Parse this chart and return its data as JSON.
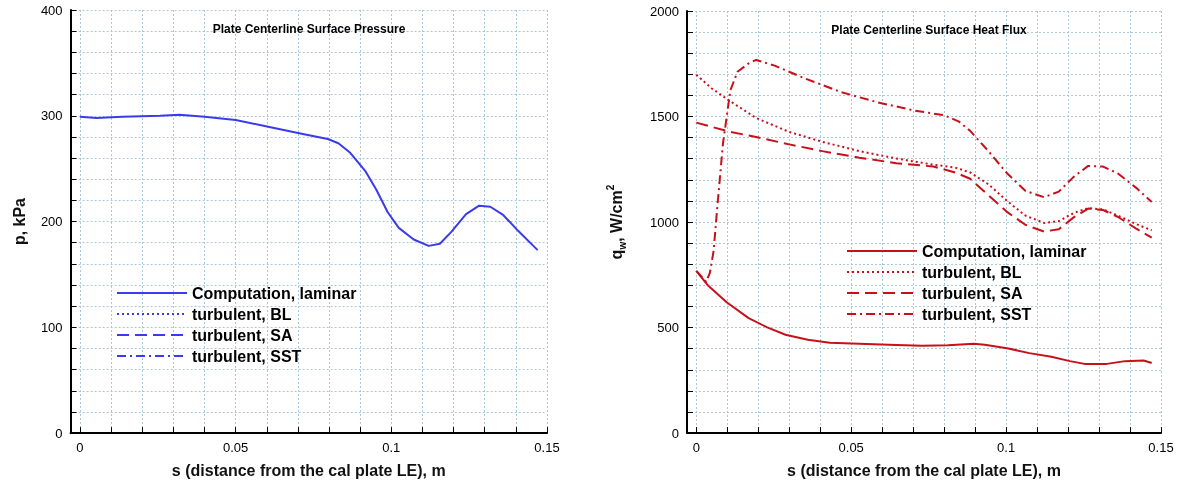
{
  "chart_data": [
    {
      "type": "line",
      "title": "Plate Centerline Surface Pressure",
      "xlabel": "s (distance from the cal plate LE), m",
      "ylabel": "p, kPa",
      "xlim": [
        -0.003,
        0.15
      ],
      "xticks": [
        0,
        {
          "value": 0.01,
          "label": null
        },
        {
          "value": 0.02,
          "label": null
        },
        {
          "value": 0.03,
          "label": null
        },
        {
          "value": 0.04,
          "label": null
        },
        0.05,
        {
          "value": 0.06,
          "label": null
        },
        {
          "value": 0.07,
          "label": null
        },
        {
          "value": 0.08,
          "label": null
        },
        {
          "value": 0.09,
          "label": null
        },
        0.1,
        {
          "value": 0.11,
          "label": null
        },
        {
          "value": 0.12,
          "label": null
        },
        {
          "value": 0.13,
          "label": null
        },
        {
          "value": 0.14,
          "label": null
        },
        0.15
      ],
      "ylim": [
        0,
        400
      ],
      "yticks": [
        0,
        {
          "value": 20,
          "label": null
        },
        {
          "value": 40,
          "label": null
        },
        {
          "value": 60,
          "label": null
        },
        {
          "value": 80,
          "label": null
        },
        100,
        {
          "value": 120,
          "label": null
        },
        {
          "value": 140,
          "label": null
        },
        {
          "value": 160,
          "label": null
        },
        {
          "value": 180,
          "label": null
        },
        200,
        {
          "value": 220,
          "label": null
        },
        {
          "value": 240,
          "label": null
        },
        {
          "value": 260,
          "label": null
        },
        {
          "value": 280,
          "label": null
        },
        300,
        {
          "value": 320,
          "label": null
        },
        {
          "value": 340,
          "label": null
        },
        {
          "value": 360,
          "label": null
        },
        {
          "value": 380,
          "label": null
        },
        400
      ],
      "grid": true,
      "legend": "bottom left",
      "marker": "none",
      "series": [
        {
          "name": "Computation, laminar",
          "color": "#3a3aee",
          "line_style": "solid",
          "x": [
            0,
            0.0053,
            0.0137,
            0.0257,
            0.032,
            0.04,
            0.05,
            0.0616,
            0.0712,
            0.0796,
            0.083,
            0.0868,
            0.0916,
            0.0952,
            0.0988,
            0.1024,
            0.1072,
            0.112,
            0.1156,
            0.1192,
            0.124,
            0.1282,
            0.1318,
            0.136,
            0.1408,
            0.147
          ],
          "values": [
            299,
            298,
            299,
            300,
            301,
            299,
            296,
            289,
            283,
            278,
            274,
            265,
            248,
            230,
            209,
            194,
            183,
            177,
            179,
            190,
            207,
            215,
            214,
            206,
            191,
            173
          ]
        },
        {
          "name": "turbulent, BL",
          "color": "#3a3aee",
          "line_style": "dotted"
        },
        {
          "name": "turbulent, SA",
          "color": "#3a3aee",
          "line_style": "dashed"
        },
        {
          "name": "turbulent, SST",
          "color": "#3a3aee",
          "line_style": "dashdot"
        }
      ]
    },
    {
      "type": "line",
      "title": "Plate Centerline Surface Heat Flux",
      "xlabel": "s (distance from the cal plate LE), m",
      "ylabel": "q$_{w}$, W/cm$^{2}$",
      "xlim": [
        -0.003,
        0.15
      ],
      "xticks": [
        0,
        {
          "value": 0.01,
          "label": null
        },
        {
          "value": 0.02,
          "label": null
        },
        {
          "value": 0.03,
          "label": null
        },
        {
          "value": 0.04,
          "label": null
        },
        0.05,
        {
          "value": 0.06,
          "label": null
        },
        {
          "value": 0.07,
          "label": null
        },
        {
          "value": 0.08,
          "label": null
        },
        {
          "value": 0.09,
          "label": null
        },
        0.1,
        {
          "value": 0.11,
          "label": null
        },
        {
          "value": 0.12,
          "label": null
        },
        {
          "value": 0.13,
          "label": null
        },
        {
          "value": 0.14,
          "label": null
        },
        0.15
      ],
      "ylim": [
        0,
        2000
      ],
      "yticks": [
        0,
        {
          "value": 100,
          "label": null
        },
        {
          "value": 200,
          "label": null
        },
        {
          "value": 300,
          "label": null
        },
        {
          "value": 400,
          "label": null
        },
        500,
        {
          "value": 600,
          "label": null
        },
        {
          "value": 700,
          "label": null
        },
        {
          "value": 800,
          "label": null
        },
        {
          "value": 900,
          "label": null
        },
        1000,
        {
          "value": 1100,
          "label": null
        },
        {
          "value": 1200,
          "label": null
        },
        {
          "value": 1300,
          "label": null
        },
        {
          "value": 1400,
          "label": null
        },
        1500,
        {
          "value": 1600,
          "label": null
        },
        {
          "value": 1700,
          "label": null
        },
        {
          "value": 1800,
          "label": null
        },
        {
          "value": 1900,
          "label": null
        },
        2000
      ],
      "grid": true,
      "legend": "center right",
      "marker": "none",
      "series": [
        {
          "name": "Computation, laminar",
          "color": "#c8101a",
          "line_style": "solid",
          "x": [
            0,
            0.0038,
            0.0098,
            0.0169,
            0.0229,
            0.0288,
            0.036,
            0.0431,
            0.0526,
            0.0646,
            0.0729,
            0.0812,
            0.0896,
            0.0931,
            0.1003,
            0.1075,
            0.1146,
            0.1206,
            0.1253,
            0.1325,
            0.1384,
            0.1444,
            0.147
          ],
          "values": [
            769,
            699,
            620,
            545,
            501,
            466,
            442,
            428,
            423,
            417,
            414,
            416,
            423,
            419,
            402,
            379,
            362,
            341,
            328,
            328,
            341,
            344,
            332
          ]
        },
        {
          "name": "turbulent, BL",
          "color": "#c8101a",
          "line_style": "dotted",
          "x": [
            0,
            0.005,
            0.011,
            0.0193,
            0.03,
            0.0407,
            0.0527,
            0.0646,
            0.0765,
            0.0836,
            0.0884,
            0.0943,
            0.1003,
            0.1062,
            0.1122,
            0.117,
            0.1218,
            0.1265,
            0.1313,
            0.136,
            0.142,
            0.147
          ],
          "values": [
            1698,
            1633,
            1572,
            1493,
            1427,
            1380,
            1336,
            1301,
            1272,
            1258,
            1235,
            1179,
            1100,
            1031,
            996,
            1004,
            1043,
            1066,
            1060,
            1031,
            990,
            961
          ]
        },
        {
          "name": "turbulent, SA",
          "color": "#c8101a",
          "line_style": "dashed",
          "x": [
            0,
            0.011,
            0.0193,
            0.03,
            0.0407,
            0.0526,
            0.0646,
            0.0765,
            0.0836,
            0.0884,
            0.0943,
            0.1003,
            0.1062,
            0.1122,
            0.117,
            0.1218,
            0.1265,
            0.1313,
            0.136,
            0.142,
            0.147
          ],
          "values": [
            1471,
            1427,
            1403,
            1368,
            1336,
            1305,
            1279,
            1263,
            1235,
            1205,
            1127,
            1048,
            987,
            955,
            966,
            1022,
            1064,
            1057,
            1025,
            969,
            926
          ]
        },
        {
          "name": "turbulent, SST",
          "color": "#c8101a",
          "line_style": "dashdot",
          "x": [
            0,
            0.0032,
            0.0044,
            0.0056,
            0.0068,
            0.0086,
            0.011,
            0.0133,
            0.0169,
            0.0193,
            0.0253,
            0.0348,
            0.0467,
            0.0586,
            0.0705,
            0.08,
            0.0848,
            0.0884,
            0.0943,
            0.1003,
            0.1062,
            0.1122,
            0.117,
            0.1218,
            0.1265,
            0.1313,
            0.136,
            0.142,
            0.147
          ],
          "values": [
            769,
            716,
            760,
            865,
            1074,
            1371,
            1624,
            1712,
            1752,
            1768,
            1741,
            1682,
            1616,
            1567,
            1528,
            1506,
            1476,
            1432,
            1336,
            1231,
            1148,
            1118,
            1144,
            1214,
            1266,
            1263,
            1231,
            1162,
            1095
          ]
        }
      ]
    }
  ]
}
